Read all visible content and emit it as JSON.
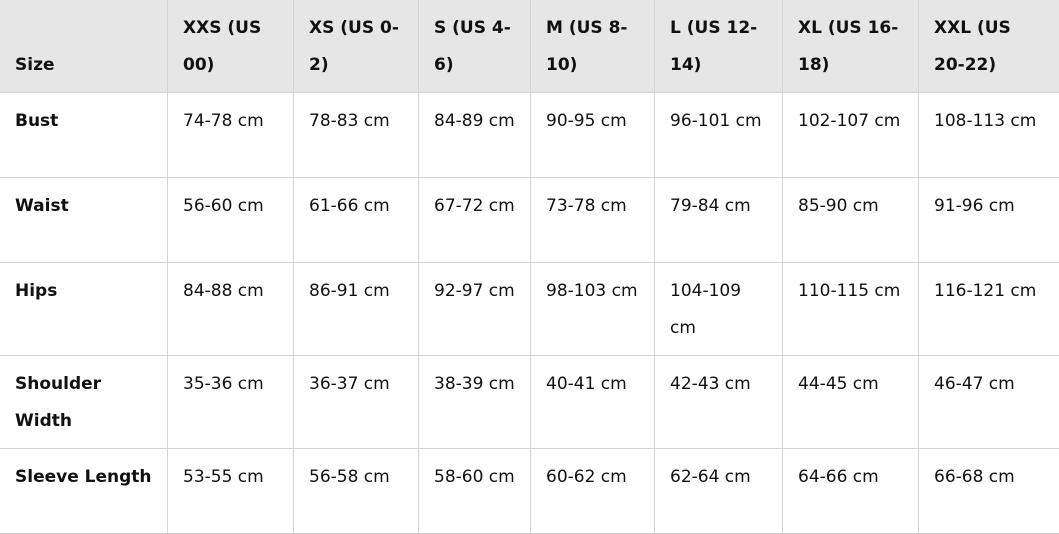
{
  "table": {
    "headers": [
      "Size",
      "XXS (US 00)",
      "XS (US 0-2)",
      "S (US 4-6)",
      "M (US 8-10)",
      "L (US 12-14)",
      "XL (US 16-18)",
      "XXL (US 20-22)"
    ],
    "rows": [
      {
        "label": "Bust",
        "cells": [
          "74-78 cm",
          "78-83 cm",
          "84-89 cm",
          "90-95 cm",
          "96-101 cm",
          "102-107 cm",
          "108-113 cm"
        ]
      },
      {
        "label": "Waist",
        "cells": [
          "56-60 cm",
          "61-66 cm",
          "67-72 cm",
          "73-78 cm",
          "79-84 cm",
          "85-90 cm",
          "91-96 cm"
        ]
      },
      {
        "label": "Hips",
        "cells": [
          "84-88 cm",
          "86-91 cm",
          "92-97 cm",
          "98-103 cm",
          "104-109 cm",
          "110-115 cm",
          "116-121 cm"
        ]
      },
      {
        "label": "Shoulder Width",
        "cells": [
          "35-36 cm",
          "36-37 cm",
          "38-39 cm",
          "40-41 cm",
          "42-43 cm",
          "44-45 cm",
          "46-47 cm"
        ]
      },
      {
        "label": "Sleeve Length",
        "cells": [
          "53-55 cm",
          "56-58 cm",
          "58-60 cm",
          "60-62 cm",
          "62-64 cm",
          "64-66 cm",
          "66-68 cm"
        ]
      }
    ]
  },
  "colors": {
    "header_bg": "#e6e6e6",
    "border": "#d4d4d4",
    "text": "#111111"
  }
}
